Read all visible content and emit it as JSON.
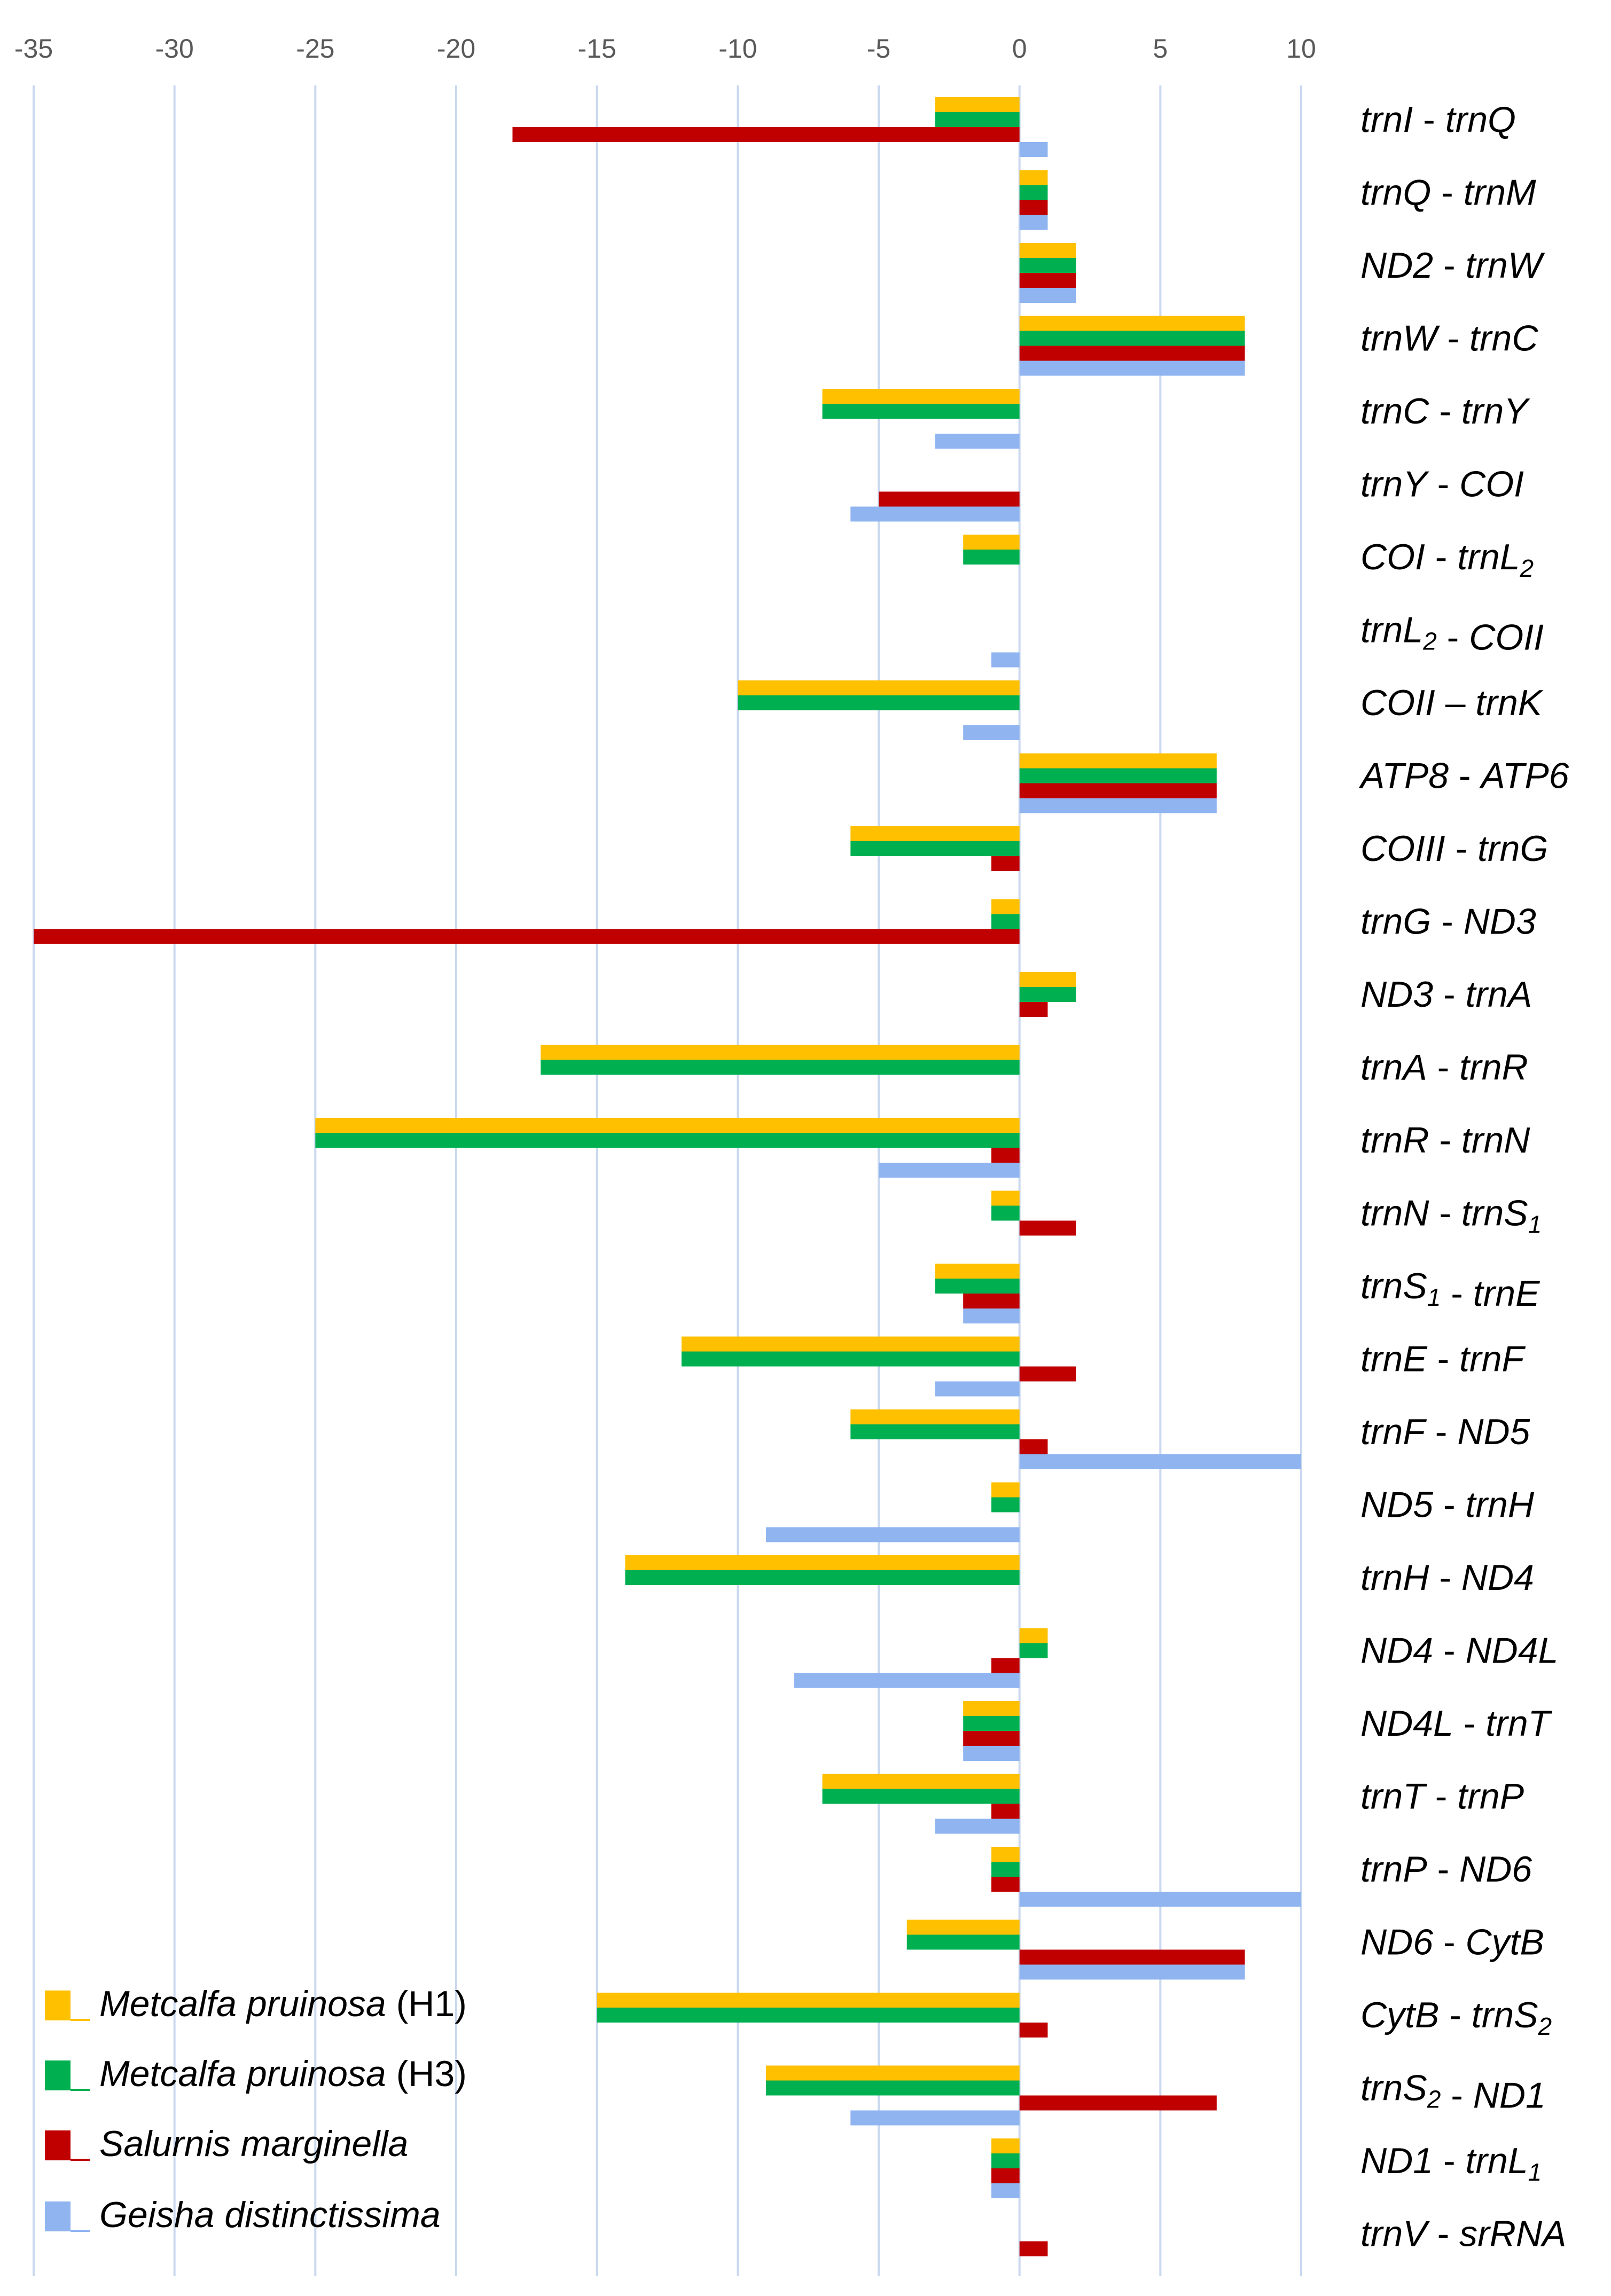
{
  "chart_data": {
    "type": "bar",
    "orientation": "horizontal",
    "xlim": [
      -35,
      10
    ],
    "ticks": [
      -35,
      -30,
      -25,
      -20,
      -15,
      -10,
      -5,
      0,
      5,
      10
    ],
    "tick_labels": [
      "-35",
      "-30",
      "-25",
      "-20",
      "-15",
      "-10",
      "-5",
      "0",
      "5",
      "10"
    ],
    "grid": true,
    "legend_position": "bottom-left",
    "categories": [
      {
        "a": "trnI",
        "b": "trnQ",
        "sep": " - "
      },
      {
        "a": "trnQ",
        "b": "trnM",
        "sep": " - "
      },
      {
        "a": "ND2",
        "b": "trnW",
        "sep": " - "
      },
      {
        "a": "trnW",
        "b": "trnC",
        "sep": " - "
      },
      {
        "a": "trnC",
        "b": "trnY",
        "sep": " - "
      },
      {
        "a": "trnY",
        "b": "COI",
        "sep": " - "
      },
      {
        "a": "COI",
        "b": "trnL",
        "b_sub": "2",
        "sep": " - "
      },
      {
        "a": "trnL",
        "a_sub": "2",
        "b": "COII",
        "sep": " - "
      },
      {
        "a": "COII",
        "b": "trnK",
        "sep": " – "
      },
      {
        "a": "ATP8",
        "b": "ATP6",
        "sep": " - "
      },
      {
        "a": "COIII",
        "b": "trnG",
        "sep": " - "
      },
      {
        "a": "trnG",
        "b": "ND3",
        "sep": " - "
      },
      {
        "a": "ND3",
        "b": "trnA",
        "sep": " - "
      },
      {
        "a": "trnA",
        "b": "trnR",
        "sep": " - "
      },
      {
        "a": "trnR",
        "b": "trnN",
        "sep": " - "
      },
      {
        "a": "trnN",
        "b": "trnS",
        "b_sub": "1",
        "sep": " - "
      },
      {
        "a": "trnS",
        "a_sub": "1",
        "b": "trnE",
        "sep": " - "
      },
      {
        "a": "trnE",
        "b": "trnF",
        "sep": " - "
      },
      {
        "a": "trnF",
        "b": "ND5",
        "sep": " - "
      },
      {
        "a": "ND5",
        "b": "trnH",
        "sep": " - "
      },
      {
        "a": "trnH",
        "b": "ND4",
        "sep": " - "
      },
      {
        "a": "ND4",
        "b": "ND4L",
        "sep": " - "
      },
      {
        "a": "ND4L",
        "b": "trnT",
        "sep": " - "
      },
      {
        "a": "trnT",
        "b": "trnP",
        "sep": " - "
      },
      {
        "a": "trnP",
        "b": "ND6",
        "sep": " - "
      },
      {
        "a": "ND6",
        "b": "CytB",
        "sep": " - "
      },
      {
        "a": "CytB",
        "b": "trnS",
        "b_sub": "2",
        "sep": " - "
      },
      {
        "a": "trnS",
        "a_sub": "2",
        "b": "ND1",
        "sep": " - "
      },
      {
        "a": "ND1",
        "b": "trnL",
        "b_sub": "1",
        "sep": " - "
      },
      {
        "a": "trnV",
        "b": "srRNA",
        "sep": " - "
      }
    ],
    "series": [
      {
        "name": "Metcalfa pruinosa",
        "suffix": " (H1)",
        "color": "#FFC000",
        "values": [
          -3,
          1,
          2,
          8,
          -7,
          0,
          -2,
          0,
          -10,
          7,
          -6,
          -1,
          2,
          -17,
          -25,
          -1,
          -3,
          -12,
          -6,
          -1,
          -14,
          1,
          -2,
          -7,
          -1,
          -4,
          -15,
          -9,
          -1,
          0
        ]
      },
      {
        "name": "Metcalfa pruinosa",
        "suffix": " (H3)",
        "color": "#00B050",
        "values": [
          -3,
          1,
          2,
          8,
          -7,
          0,
          -2,
          0,
          -10,
          7,
          -6,
          -1,
          2,
          -17,
          -25,
          -1,
          -3,
          -12,
          -6,
          -1,
          -14,
          1,
          -2,
          -7,
          -1,
          -4,
          -15,
          -9,
          -1,
          0
        ]
      },
      {
        "name": "Salurnis marginella",
        "suffix": "",
        "color": "#C00000",
        "values": [
          -18,
          1,
          2,
          8,
          0,
          -5,
          0,
          0,
          0,
          7,
          -1,
          -35,
          1,
          0,
          -1,
          2,
          -2,
          2,
          1,
          0,
          0,
          -1,
          -2,
          -1,
          -1,
          8,
          1,
          7,
          -1,
          1
        ]
      },
      {
        "name": "Geisha distinctissima",
        "suffix": "",
        "color": "#8FB4F0",
        "values": [
          1,
          1,
          2,
          8,
          -3,
          -6,
          0,
          -1,
          -2,
          7,
          0,
          0,
          0,
          0,
          -5,
          0,
          -2,
          -3,
          10,
          -9,
          0,
          -8,
          -2,
          -3,
          10,
          8,
          0,
          -6,
          -1,
          0
        ]
      }
    ]
  }
}
